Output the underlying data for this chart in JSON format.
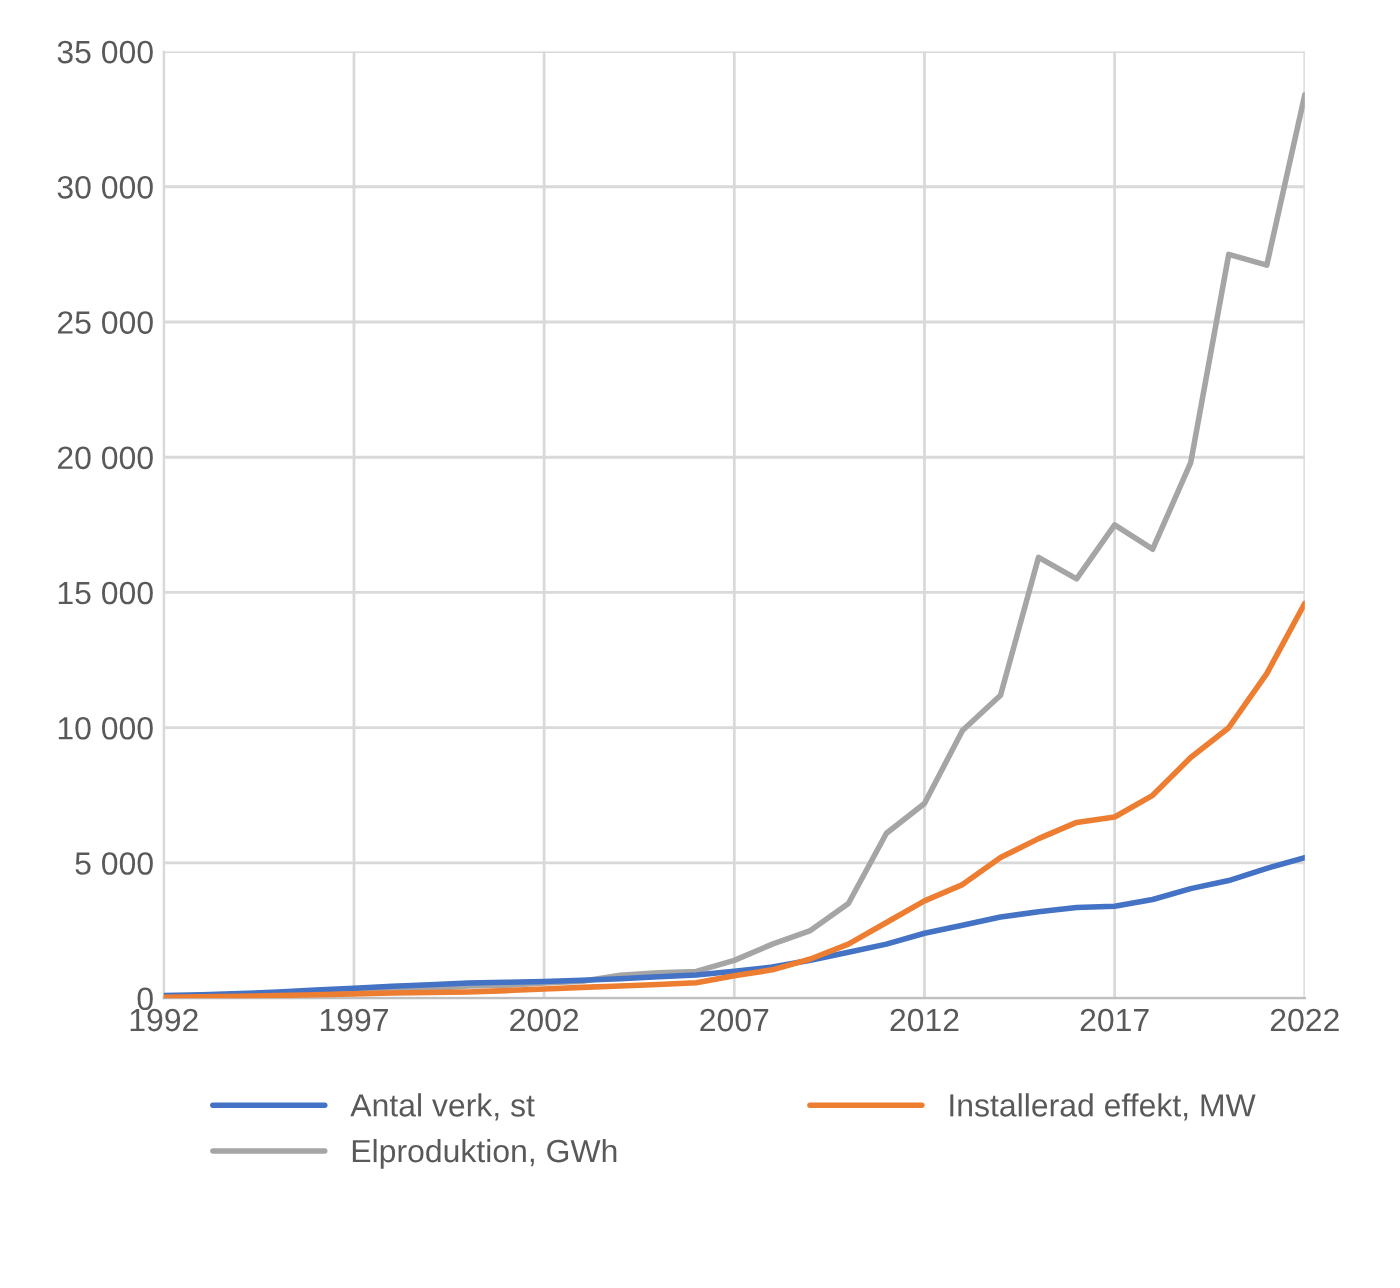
{
  "chart_data": {
    "type": "line",
    "x": [
      1992,
      1993,
      1994,
      1995,
      1996,
      1997,
      1998,
      1999,
      2000,
      2001,
      2002,
      2003,
      2004,
      2005,
      2006,
      2007,
      2008,
      2009,
      2010,
      2011,
      2012,
      2013,
      2014,
      2015,
      2016,
      2017,
      2018,
      2019,
      2020,
      2021,
      2022
    ],
    "series": [
      {
        "name": "Antal verk, st",
        "color": "#4472c4",
        "values": [
          100,
          130,
          170,
          230,
          300,
          370,
          440,
          500,
          560,
          590,
          620,
          660,
          720,
          790,
          860,
          1000,
          1150,
          1400,
          1700,
          2000,
          2400,
          2700,
          3000,
          3200,
          3350,
          3400,
          3650,
          4050,
          4350,
          4800,
          5200
        ]
      },
      {
        "name": "Installerad effekt, MW",
        "color": "#ed7d31",
        "values": [
          30,
          50,
          70,
          100,
          130,
          160,
          190,
          210,
          230,
          280,
          340,
          400,
          450,
          510,
          570,
          830,
          1050,
          1450,
          2000,
          2800,
          3600,
          4200,
          5200,
          5900,
          6500,
          6700,
          7500,
          8900,
          10000,
          12000,
          14600
        ]
      },
      {
        "name": "Elproduktion, GWh",
        "color": "#a5a5a5",
        "values": [
          50,
          60,
          80,
          100,
          150,
          200,
          300,
          350,
          450,
          480,
          560,
          630,
          850,
          940,
          990,
          1400,
          2000,
          2500,
          3500,
          6100,
          7200,
          9900,
          11200,
          16300,
          15500,
          17500,
          16600,
          19800,
          27500,
          27100,
          33400
        ]
      }
    ],
    "xlim": [
      1992,
      2022
    ],
    "xticks": [
      1992,
      1997,
      2002,
      2007,
      2012,
      2017,
      2022
    ],
    "ylim": [
      0,
      35000
    ],
    "yticks": [
      0,
      {
        "value": 5000,
        "label": "5 000"
      },
      {
        "value": 10000,
        "label": "10 000"
      },
      {
        "value": 15000,
        "label": "15 000"
      },
      {
        "value": 20000,
        "label": "20 000"
      },
      {
        "value": 25000,
        "label": "25 000"
      },
      {
        "value": 30000,
        "label": "30 000"
      },
      {
        "value": 35000,
        "label": "35 000"
      }
    ],
    "grid": true,
    "legend": "bottom",
    "marker": "none",
    "line_style": "solid"
  }
}
